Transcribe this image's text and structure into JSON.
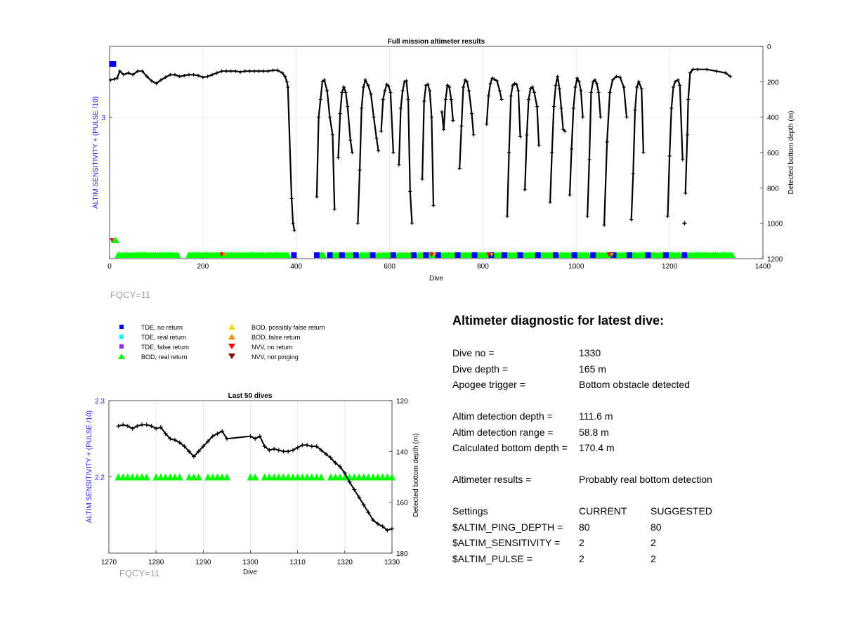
{
  "top_chart": {
    "title": "Full mission altimeter results",
    "xlabel": "Dive",
    "ylabel_left": "ALTIM SENSITIVITY + (PULSE /10)",
    "ylabel_right": "Detected bottom depth (m)",
    "x_ticks": [
      "0",
      "200",
      "400",
      "600",
      "800",
      "1000",
      "1200",
      "1400"
    ],
    "y_left_ticks": [
      "3"
    ],
    "y_right_ticks": [
      "0",
      "200",
      "400",
      "600",
      "800",
      "1000",
      "1200"
    ],
    "fqcy": "FQCY=11"
  },
  "legend": [
    {
      "label": "TDE, no return",
      "color": "#0000ff",
      "shape": "square"
    },
    {
      "label": "TDE, real return",
      "color": "#00ffff",
      "shape": "square"
    },
    {
      "label": "TDE, false return",
      "color": "#8a2be2",
      "shape": "square"
    },
    {
      "label": "BOD, real return",
      "color": "#00ff00",
      "shape": "triangle-up"
    },
    {
      "label": "BOD, possibly false return",
      "color": "#ffd700",
      "shape": "triangle-up"
    },
    {
      "label": "BOD, false return",
      "color": "#ff8c00",
      "shape": "triangle-up"
    },
    {
      "label": "NVV, no return",
      "color": "#ff0000",
      "shape": "triangle-down"
    },
    {
      "label": "NVV, not pinging",
      "color": "#8b0000",
      "shape": "triangle-down"
    }
  ],
  "bottom_chart": {
    "title": "Last 50 dives",
    "xlabel": "Dive",
    "ylabel_left": "ALTIM SENSITIVITY + (PULSE /10)",
    "ylabel_right": "Detected bottom depth (m)",
    "x_ticks": [
      "1270",
      "1280",
      "1290",
      "1300",
      "1310",
      "1320",
      "1330"
    ],
    "y_left_ticks": [
      "2.3",
      "2.2"
    ],
    "y_right_ticks": [
      "120",
      "140",
      "160",
      "180"
    ],
    "fqcy": "FQCY=11"
  },
  "diagnostic": {
    "title": "Altimeter diagnostic for latest dive:",
    "rows": [
      {
        "label": "Dive no =",
        "value": "1330"
      },
      {
        "label": "Dive depth =",
        "value": "165 m"
      },
      {
        "label": "Apogee trigger =",
        "value": "Bottom obstacle detected"
      },
      {
        "label": "Altim detection depth =",
        "value": "111.6 m"
      },
      {
        "label": "Altim detection range =",
        "value": "58.8 m"
      },
      {
        "label": "Calculated bottom depth =",
        "value": "170.4 m"
      },
      {
        "label": "Altimeter results =",
        "value": "Probably real bottom detection"
      }
    ],
    "settings_header": {
      "label": "Settings",
      "current": "CURRENT",
      "suggested": "SUGGESTED"
    },
    "settings": [
      {
        "label": "$ALTIM_PING_DEPTH =",
        "current": "80",
        "suggested": "80"
      },
      {
        "label": "$ALTIM_SENSITIVITY =",
        "current": "2",
        "suggested": "2"
      },
      {
        "label": "$ALTIM_PULSE =",
        "current": "2",
        "suggested": "2"
      }
    ]
  },
  "chart_data": [
    {
      "type": "scatter",
      "title": "Full mission altimeter results",
      "xlabel": "Dive",
      "ylabel": "ALTIM SENSITIVITY + (PULSE /10)",
      "y2label": "Detected bottom depth (m)",
      "xlim": [
        0,
        1400
      ],
      "y2lim": [
        0,
        1200
      ],
      "y2_reversed": true,
      "grid": true,
      "depth_series": {
        "x": [
          2,
          10,
          16,
          22,
          30,
          40,
          50,
          60,
          70,
          80,
          90,
          100,
          110,
          120,
          130,
          140,
          150,
          160,
          170,
          180,
          190,
          200,
          210,
          220,
          230,
          240,
          250,
          260,
          270,
          280,
          290,
          300,
          310,
          320,
          330,
          340,
          350,
          360,
          370,
          376,
          380,
          382,
          390,
          393,
          396
        ],
        "y": [
          190,
          185,
          180,
          140,
          160,
          150,
          160,
          140,
          140,
          170,
          195,
          210,
          190,
          175,
          160,
          160,
          170,
          165,
          160,
          160,
          165,
          175,
          170,
          160,
          150,
          140,
          140,
          140,
          140,
          145,
          140,
          140,
          140,
          140,
          140,
          140,
          135,
          135,
          150,
          170,
          200,
          230,
          860,
          1000,
          1040
        ]
      },
      "depth_dives": [
        {
          "x": [
            444,
            448,
            452,
            456,
            460,
            466,
            472,
            478,
            482
          ],
          "y": [
            850,
            400,
            300,
            200,
            190,
            250,
            400,
            500,
            920
          ]
        },
        {
          "x": [
            490,
            494,
            498,
            502,
            506,
            510,
            516,
            520
          ],
          "y": [
            630,
            380,
            260,
            230,
            260,
            340,
            530,
            600
          ]
        },
        {
          "x": [
            532,
            536,
            540,
            544,
            548,
            554,
            560,
            566,
            572,
            576
          ],
          "y": [
            1000,
            700,
            350,
            230,
            190,
            220,
            270,
            400,
            520,
            590
          ]
        },
        {
          "x": [
            582,
            586,
            590,
            594,
            598,
            602,
            608
          ],
          "y": [
            480,
            300,
            250,
            215,
            225,
            260,
            600
          ]
        },
        {
          "x": [
            620,
            624,
            628,
            632,
            636,
            640,
            644,
            648
          ],
          "y": [
            670,
            350,
            250,
            200,
            195,
            300,
            820,
            1000
          ]
        },
        {
          "x": [
            670,
            674,
            678,
            682,
            686,
            690,
            694
          ],
          "y": [
            750,
            310,
            220,
            215,
            250,
            400,
            900
          ]
        },
        {
          "x": [
            712,
            716,
            720,
            724,
            728,
            732,
            736
          ],
          "y": [
            370,
            470,
            300,
            220,
            230,
            300,
            420
          ]
        },
        {
          "x": [
            750,
            754,
            758,
            762,
            766,
            770,
            776,
            780
          ],
          "y": [
            690,
            450,
            230,
            190,
            200,
            250,
            380,
            500
          ]
        },
        {
          "x": [
            808,
            812,
            816,
            820,
            824,
            830,
            836,
            840
          ],
          "y": [
            440,
            280,
            210,
            180,
            185,
            195,
            250,
            300
          ]
        },
        {
          "x": [
            852,
            856,
            860,
            864,
            868,
            872,
            876,
            880
          ],
          "y": [
            960,
            600,
            280,
            220,
            210,
            215,
            250,
            510
          ]
        },
        {
          "x": [
            890,
            894,
            898,
            902,
            906,
            910,
            916,
            920
          ],
          "y": [
            810,
            500,
            300,
            240,
            230,
            260,
            340,
            560
          ]
        },
        {
          "x": [
            944,
            948,
            952,
            956,
            960,
            964,
            968,
            972,
            976
          ],
          "y": [
            880,
            600,
            340,
            220,
            170,
            240,
            350,
            470,
            480
          ]
        },
        {
          "x": [
            986,
            990,
            994,
            998,
            1002,
            1006,
            1010,
            1014
          ],
          "y": [
            840,
            580,
            350,
            230,
            180,
            200,
            250,
            400
          ]
        },
        {
          "x": [
            1024,
            1028,
            1032,
            1036,
            1040,
            1044,
            1048,
            1052
          ],
          "y": [
            960,
            640,
            260,
            200,
            190,
            210,
            260,
            400
          ]
        },
        {
          "x": [
            1060,
            1066,
            1072,
            1078,
            1086,
            1094,
            1102,
            1108
          ],
          "y": [
            1010,
            540,
            260,
            190,
            170,
            175,
            230,
            400
          ]
        },
        {
          "x": [
            1118,
            1122,
            1126,
            1130,
            1134,
            1140,
            1144
          ],
          "y": [
            980,
            720,
            360,
            230,
            200,
            240,
            600
          ]
        },
        {
          "x": [
            1196,
            1200,
            1204,
            1208,
            1212,
            1218,
            1222,
            1228
          ],
          "y": [
            960,
            620,
            350,
            230,
            200,
            190,
            220,
            640
          ]
        },
        {
          "x": [
            1234,
            1238,
            1240,
            1244,
            1250,
            1260,
            1280,
            1300,
            1320,
            1330
          ],
          "y": [
            830,
            500,
            300,
            150,
            130,
            130,
            130,
            140,
            150,
            170
          ]
        }
      ],
      "depth_outliers": [
        {
          "x": 1232,
          "y": 1000
        }
      ],
      "settings_markers": {
        "tde_no_return_first_dive": {
          "x": 2,
          "y_label": "above 3"
        },
        "bod_real_return_dives": "most dives 1-1330 at setting 2.2",
        "nvv_markers_dives": [
          240,
          690,
          812,
          1070
        ]
      }
    },
    {
      "type": "line",
      "title": "Last 50 dives",
      "xlabel": "Dive",
      "ylabel": "ALTIM SENSITIVITY + (PULSE /10)",
      "y2label": "Detected bottom depth (m)",
      "xlim": [
        1270,
        1330
      ],
      "ylim": [
        2.1,
        2.3
      ],
      "y2lim": [
        120,
        180
      ],
      "y2_reversed": true,
      "grid": true,
      "depth_series": {
        "x": [
          1272,
          1273,
          1274,
          1275,
          1276,
          1277,
          1278,
          1279,
          1280,
          1281,
          1282,
          1283,
          1284,
          1285,
          1286,
          1287,
          1288,
          1289,
          1290,
          1291,
          1292,
          1293,
          1294,
          1295,
          1300,
          1301,
          1302,
          1303,
          1304,
          1305,
          1306,
          1307,
          1308,
          1309,
          1310,
          1311,
          1312,
          1313,
          1314,
          1315,
          1316,
          1317,
          1318,
          1319,
          1320,
          1321,
          1322,
          1323,
          1324,
          1325,
          1326,
          1327,
          1328,
          1329,
          1330
        ],
        "y": [
          130,
          129.5,
          130,
          131,
          130,
          129.5,
          129.5,
          130,
          131,
          130.5,
          133,
          135,
          135.5,
          136.5,
          138,
          140,
          142,
          140,
          138,
          136,
          134,
          133,
          132,
          135,
          134,
          135,
          134,
          138,
          139.5,
          139,
          139.5,
          140,
          140,
          139.5,
          138.5,
          137.5,
          137.5,
          138,
          138,
          139.5,
          141,
          142.5,
          144.5,
          146,
          148.5,
          152,
          155,
          158,
          161,
          164,
          167,
          168.5,
          169.5,
          171,
          170.4
        ]
      },
      "altim_setting": {
        "dives": [
          1272,
          1273,
          1274,
          1275,
          1276,
          1277,
          1278,
          1280,
          1281,
          1282,
          1283,
          1284,
          1285,
          1287,
          1288,
          1289,
          1291,
          1292,
          1293,
          1294,
          1295,
          1300,
          1301,
          1303,
          1304,
          1305,
          1306,
          1307,
          1308,
          1309,
          1310,
          1311,
          1312,
          1313,
          1314,
          1315,
          1317,
          1318,
          1319,
          1320,
          1321,
          1322,
          1323,
          1324,
          1325,
          1326,
          1327,
          1328,
          1329,
          1330
        ],
        "value": 2.2
      }
    }
  ]
}
